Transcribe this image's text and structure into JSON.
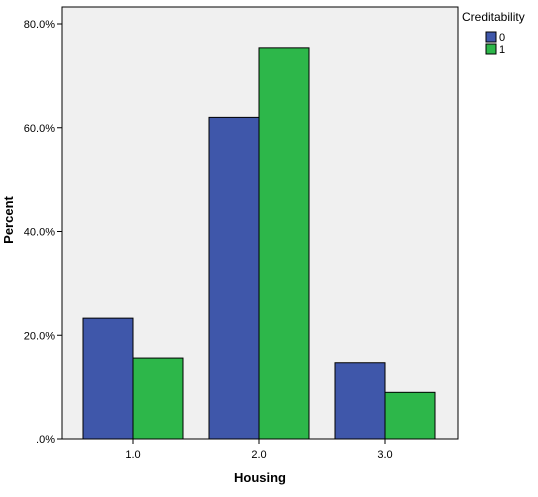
{
  "chart_data": {
    "type": "bar",
    "xlabel": "Housing",
    "ylabel": "Percent",
    "categories": [
      "1.0",
      "2.0",
      "3.0"
    ],
    "ylim": [
      0,
      80
    ],
    "yticks": [
      0,
      20,
      40,
      60,
      80
    ],
    "ytick_labels": [
      ".0%",
      "20.0%",
      "40.0%",
      "60.0%",
      "80.0%"
    ],
    "legend": {
      "title": "Creditability",
      "placement": "top-right",
      "entries": [
        "0",
        "1"
      ]
    },
    "series": [
      {
        "name": "0",
        "color": "#3f57aa",
        "values": [
          23.3,
          62.0,
          14.7
        ]
      },
      {
        "name": "1",
        "color": "#2db74a",
        "values": [
          15.6,
          75.4,
          9.0
        ]
      }
    ],
    "plot_background": "#f0f0f0",
    "grid": false
  }
}
